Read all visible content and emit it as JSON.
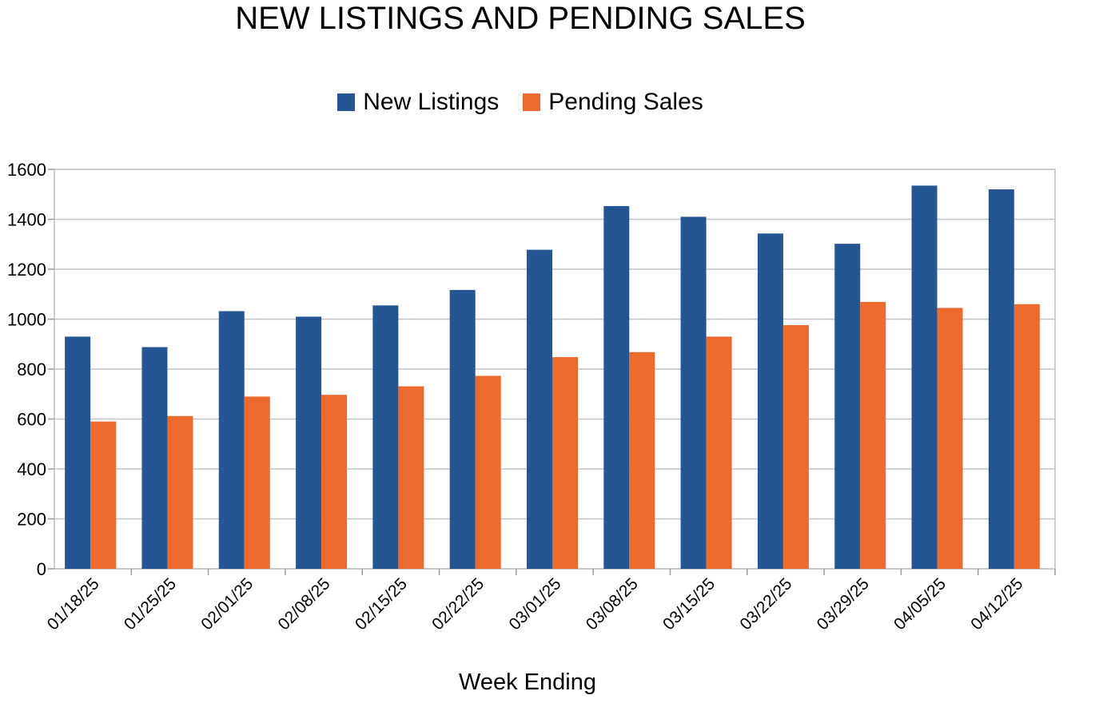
{
  "chart_data": {
    "type": "bar",
    "title": "NEW LISTINGS AND PENDING SALES",
    "xlabel": "Week Ending",
    "ylabel": "",
    "ylim": [
      0,
      1600
    ],
    "yticks": [
      0,
      200,
      400,
      600,
      800,
      1000,
      1200,
      1400,
      1600
    ],
    "grid": true,
    "legend_position": "top",
    "categories": [
      "01/18/25",
      "01/25/25",
      "02/01/25",
      "02/08/25",
      "02/15/25",
      "02/22/25",
      "03/01/25",
      "03/08/25",
      "03/15/25",
      "03/22/25",
      "03/29/25",
      "04/05/25",
      "04/12/25"
    ],
    "series": [
      {
        "name": "New Listings",
        "color": "#255694",
        "values": [
          930,
          888,
          1032,
          1010,
          1055,
          1117,
          1278,
          1453,
          1410,
          1343,
          1302,
          1535,
          1520
        ]
      },
      {
        "name": "Pending Sales",
        "color": "#ED6A2E",
        "values": [
          590,
          612,
          690,
          697,
          731,
          773,
          848,
          868,
          930,
          976,
          1069,
          1045,
          1060
        ]
      }
    ]
  }
}
